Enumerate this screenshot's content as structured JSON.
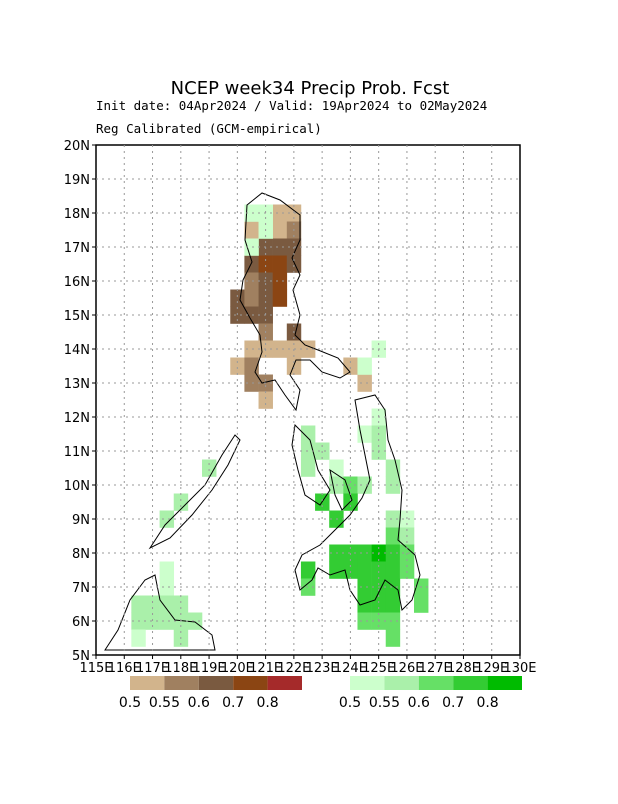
{
  "chart_data": {
    "type": "map",
    "title": "NCEP week34 Precip Prob. Fcst",
    "subtitle": "Init date: 04Apr2024 / Valid: 19Apr2024 to 02May2024",
    "note": "Reg Calibrated (GCM-empirical)",
    "xlim": [
      115,
      130
    ],
    "ylim": [
      5,
      20
    ],
    "xticks": [
      {
        "value": 115,
        "label": "115E"
      },
      {
        "value": 116,
        "label": "116E"
      },
      {
        "value": 117,
        "label": "117E"
      },
      {
        "value": 118,
        "label": "118E"
      },
      {
        "value": 119,
        "label": "119E"
      },
      {
        "value": 120,
        "label": "120E"
      },
      {
        "value": 121,
        "label": "121E"
      },
      {
        "value": 122,
        "label": "122E"
      },
      {
        "value": 123,
        "label": "123E"
      },
      {
        "value": 124,
        "label": "124E"
      },
      {
        "value": 125,
        "label": "125E"
      },
      {
        "value": 126,
        "label": "126E"
      },
      {
        "value": 127,
        "label": "127E"
      },
      {
        "value": 128,
        "label": "128E"
      },
      {
        "value": 129,
        "label": "129E"
      },
      {
        "value": 130,
        "label": "130E"
      }
    ],
    "yticks": [
      {
        "value": 5,
        "label": "5N"
      },
      {
        "value": 6,
        "label": "6N"
      },
      {
        "value": 7,
        "label": "7N"
      },
      {
        "value": 8,
        "label": "8N"
      },
      {
        "value": 9,
        "label": "9N"
      },
      {
        "value": 10,
        "label": "10N"
      },
      {
        "value": 11,
        "label": "11N"
      },
      {
        "value": 12,
        "label": "12N"
      },
      {
        "value": 13,
        "label": "13N"
      },
      {
        "value": 14,
        "label": "14N"
      },
      {
        "value": 15,
        "label": "15N"
      },
      {
        "value": 16,
        "label": "16N"
      },
      {
        "value": 17,
        "label": "17N"
      },
      {
        "value": 18,
        "label": "18N"
      },
      {
        "value": 19,
        "label": "19N"
      },
      {
        "value": 20,
        "label": "20N"
      }
    ],
    "grid": true,
    "cell_size": 0.5,
    "thresholds": [
      0.5,
      0.55,
      0.6,
      0.7,
      0.8
    ],
    "dry_colors": [
      "#d2b48c",
      "#a08060",
      "#7a5a40",
      "#8b4513",
      "#a52a2a"
    ],
    "wet_colors": [
      "#ccffcc",
      "#aaf0aa",
      "#66e066",
      "#33cc33",
      "#00bb00"
    ],
    "dry_cells": [
      [
        121.25,
        17.75,
        0
      ],
      [
        121.75,
        17.75,
        0
      ],
      [
        120.25,
        17.25,
        0
      ],
      [
        121.25,
        17.25,
        0
      ],
      [
        121.75,
        17.25,
        1
      ],
      [
        120.75,
        16.75,
        2
      ],
      [
        121.25,
        16.75,
        2
      ],
      [
        121.75,
        16.75,
        2
      ],
      [
        120.25,
        16.25,
        2
      ],
      [
        120.75,
        16.25,
        3
      ],
      [
        121.25,
        16.25,
        3
      ],
      [
        121.75,
        16.25,
        2
      ],
      [
        120.25,
        15.75,
        1
      ],
      [
        120.75,
        15.75,
        2
      ],
      [
        121.25,
        15.75,
        3
      ],
      [
        119.75,
        15.25,
        2
      ],
      [
        120.25,
        15.25,
        1
      ],
      [
        120.75,
        15.25,
        2
      ],
      [
        121.25,
        15.25,
        3
      ],
      [
        119.75,
        14.75,
        2
      ],
      [
        120.25,
        14.75,
        2
      ],
      [
        120.75,
        14.75,
        2
      ],
      [
        120.75,
        14.25,
        1
      ],
      [
        121.75,
        14.25,
        2
      ],
      [
        120.25,
        13.75,
        0
      ],
      [
        120.75,
        13.75,
        0
      ],
      [
        121.25,
        13.75,
        0
      ],
      [
        121.75,
        13.75,
        0
      ],
      [
        122.25,
        13.75,
        0
      ],
      [
        119.75,
        13.25,
        0
      ],
      [
        120.25,
        13.25,
        1
      ],
      [
        121.75,
        13.25,
        0
      ],
      [
        123.75,
        13.25,
        0
      ],
      [
        120.25,
        12.75,
        1
      ],
      [
        120.75,
        12.75,
        1
      ],
      [
        124.25,
        12.75,
        0
      ],
      [
        120.75,
        12.25,
        0
      ]
    ],
    "wet_cells": [
      [
        120.25,
        17.75,
        0
      ],
      [
        120.75,
        17.75,
        0
      ],
      [
        120.75,
        17.25,
        0
      ],
      [
        120.25,
        16.75,
        0
      ],
      [
        124.75,
        13.75,
        0
      ],
      [
        124.25,
        13.25,
        0
      ],
      [
        124.75,
        11.75,
        0
      ],
      [
        122.25,
        11.25,
        1
      ],
      [
        124.25,
        11.25,
        0
      ],
      [
        124.75,
        11.25,
        1
      ],
      [
        122.25,
        10.75,
        1
      ],
      [
        122.75,
        10.75,
        1
      ],
      [
        124.75,
        10.75,
        1
      ],
      [
        122.25,
        10.25,
        1
      ],
      [
        123.25,
        10.25,
        0
      ],
      [
        125.25,
        10.25,
        1
      ],
      [
        123.25,
        9.75,
        1
      ],
      [
        123.75,
        9.75,
        2
      ],
      [
        124.25,
        9.75,
        1
      ],
      [
        125.25,
        9.75,
        1
      ],
      [
        122.75,
        9.25,
        3
      ],
      [
        123.75,
        9.25,
        3
      ],
      [
        123.25,
        8.75,
        3
      ],
      [
        125.25,
        8.75,
        1
      ],
      [
        125.75,
        8.75,
        0
      ],
      [
        125.25,
        8.25,
        2
      ],
      [
        125.75,
        8.25,
        1
      ],
      [
        123.25,
        7.75,
        3
      ],
      [
        123.75,
        7.75,
        3
      ],
      [
        124.25,
        7.75,
        3
      ],
      [
        124.75,
        7.75,
        4
      ],
      [
        125.25,
        7.75,
        3
      ],
      [
        125.75,
        7.75,
        2
      ],
      [
        122.25,
        7.25,
        3
      ],
      [
        123.25,
        7.25,
        3
      ],
      [
        123.75,
        7.25,
        3
      ],
      [
        124.25,
        7.25,
        3
      ],
      [
        124.75,
        7.25,
        3
      ],
      [
        125.25,
        7.25,
        3
      ],
      [
        125.75,
        7.25,
        2
      ],
      [
        122.25,
        6.75,
        2
      ],
      [
        124.25,
        6.75,
        3
      ],
      [
        124.75,
        6.75,
        3
      ],
      [
        125.25,
        6.75,
        3
      ],
      [
        126.25,
        6.75,
        2
      ],
      [
        124.25,
        6.25,
        3
      ],
      [
        124.75,
        6.25,
        3
      ],
      [
        125.25,
        6.25,
        3
      ],
      [
        126.25,
        6.25,
        2
      ],
      [
        124.25,
        5.75,
        2
      ],
      [
        124.75,
        5.75,
        2
      ],
      [
        125.25,
        5.75,
        2
      ],
      [
        125.25,
        5.25,
        2
      ],
      [
        117.25,
        7.25,
        0
      ],
      [
        117.25,
        6.75,
        0
      ],
      [
        116.25,
        6.25,
        1
      ],
      [
        116.75,
        6.25,
        1
      ],
      [
        117.25,
        6.25,
        1
      ],
      [
        117.75,
        6.25,
        1
      ],
      [
        116.25,
        5.75,
        1
      ],
      [
        116.75,
        5.75,
        1
      ],
      [
        117.25,
        5.75,
        1
      ],
      [
        117.75,
        5.75,
        1
      ],
      [
        118.25,
        5.75,
        1
      ],
      [
        116.25,
        5.25,
        0
      ],
      [
        117.75,
        5.25,
        1
      ],
      [
        117.75,
        9.25,
        1
      ],
      [
        117.25,
        8.75,
        1
      ],
      [
        118.75,
        10.25,
        1
      ]
    ]
  }
}
